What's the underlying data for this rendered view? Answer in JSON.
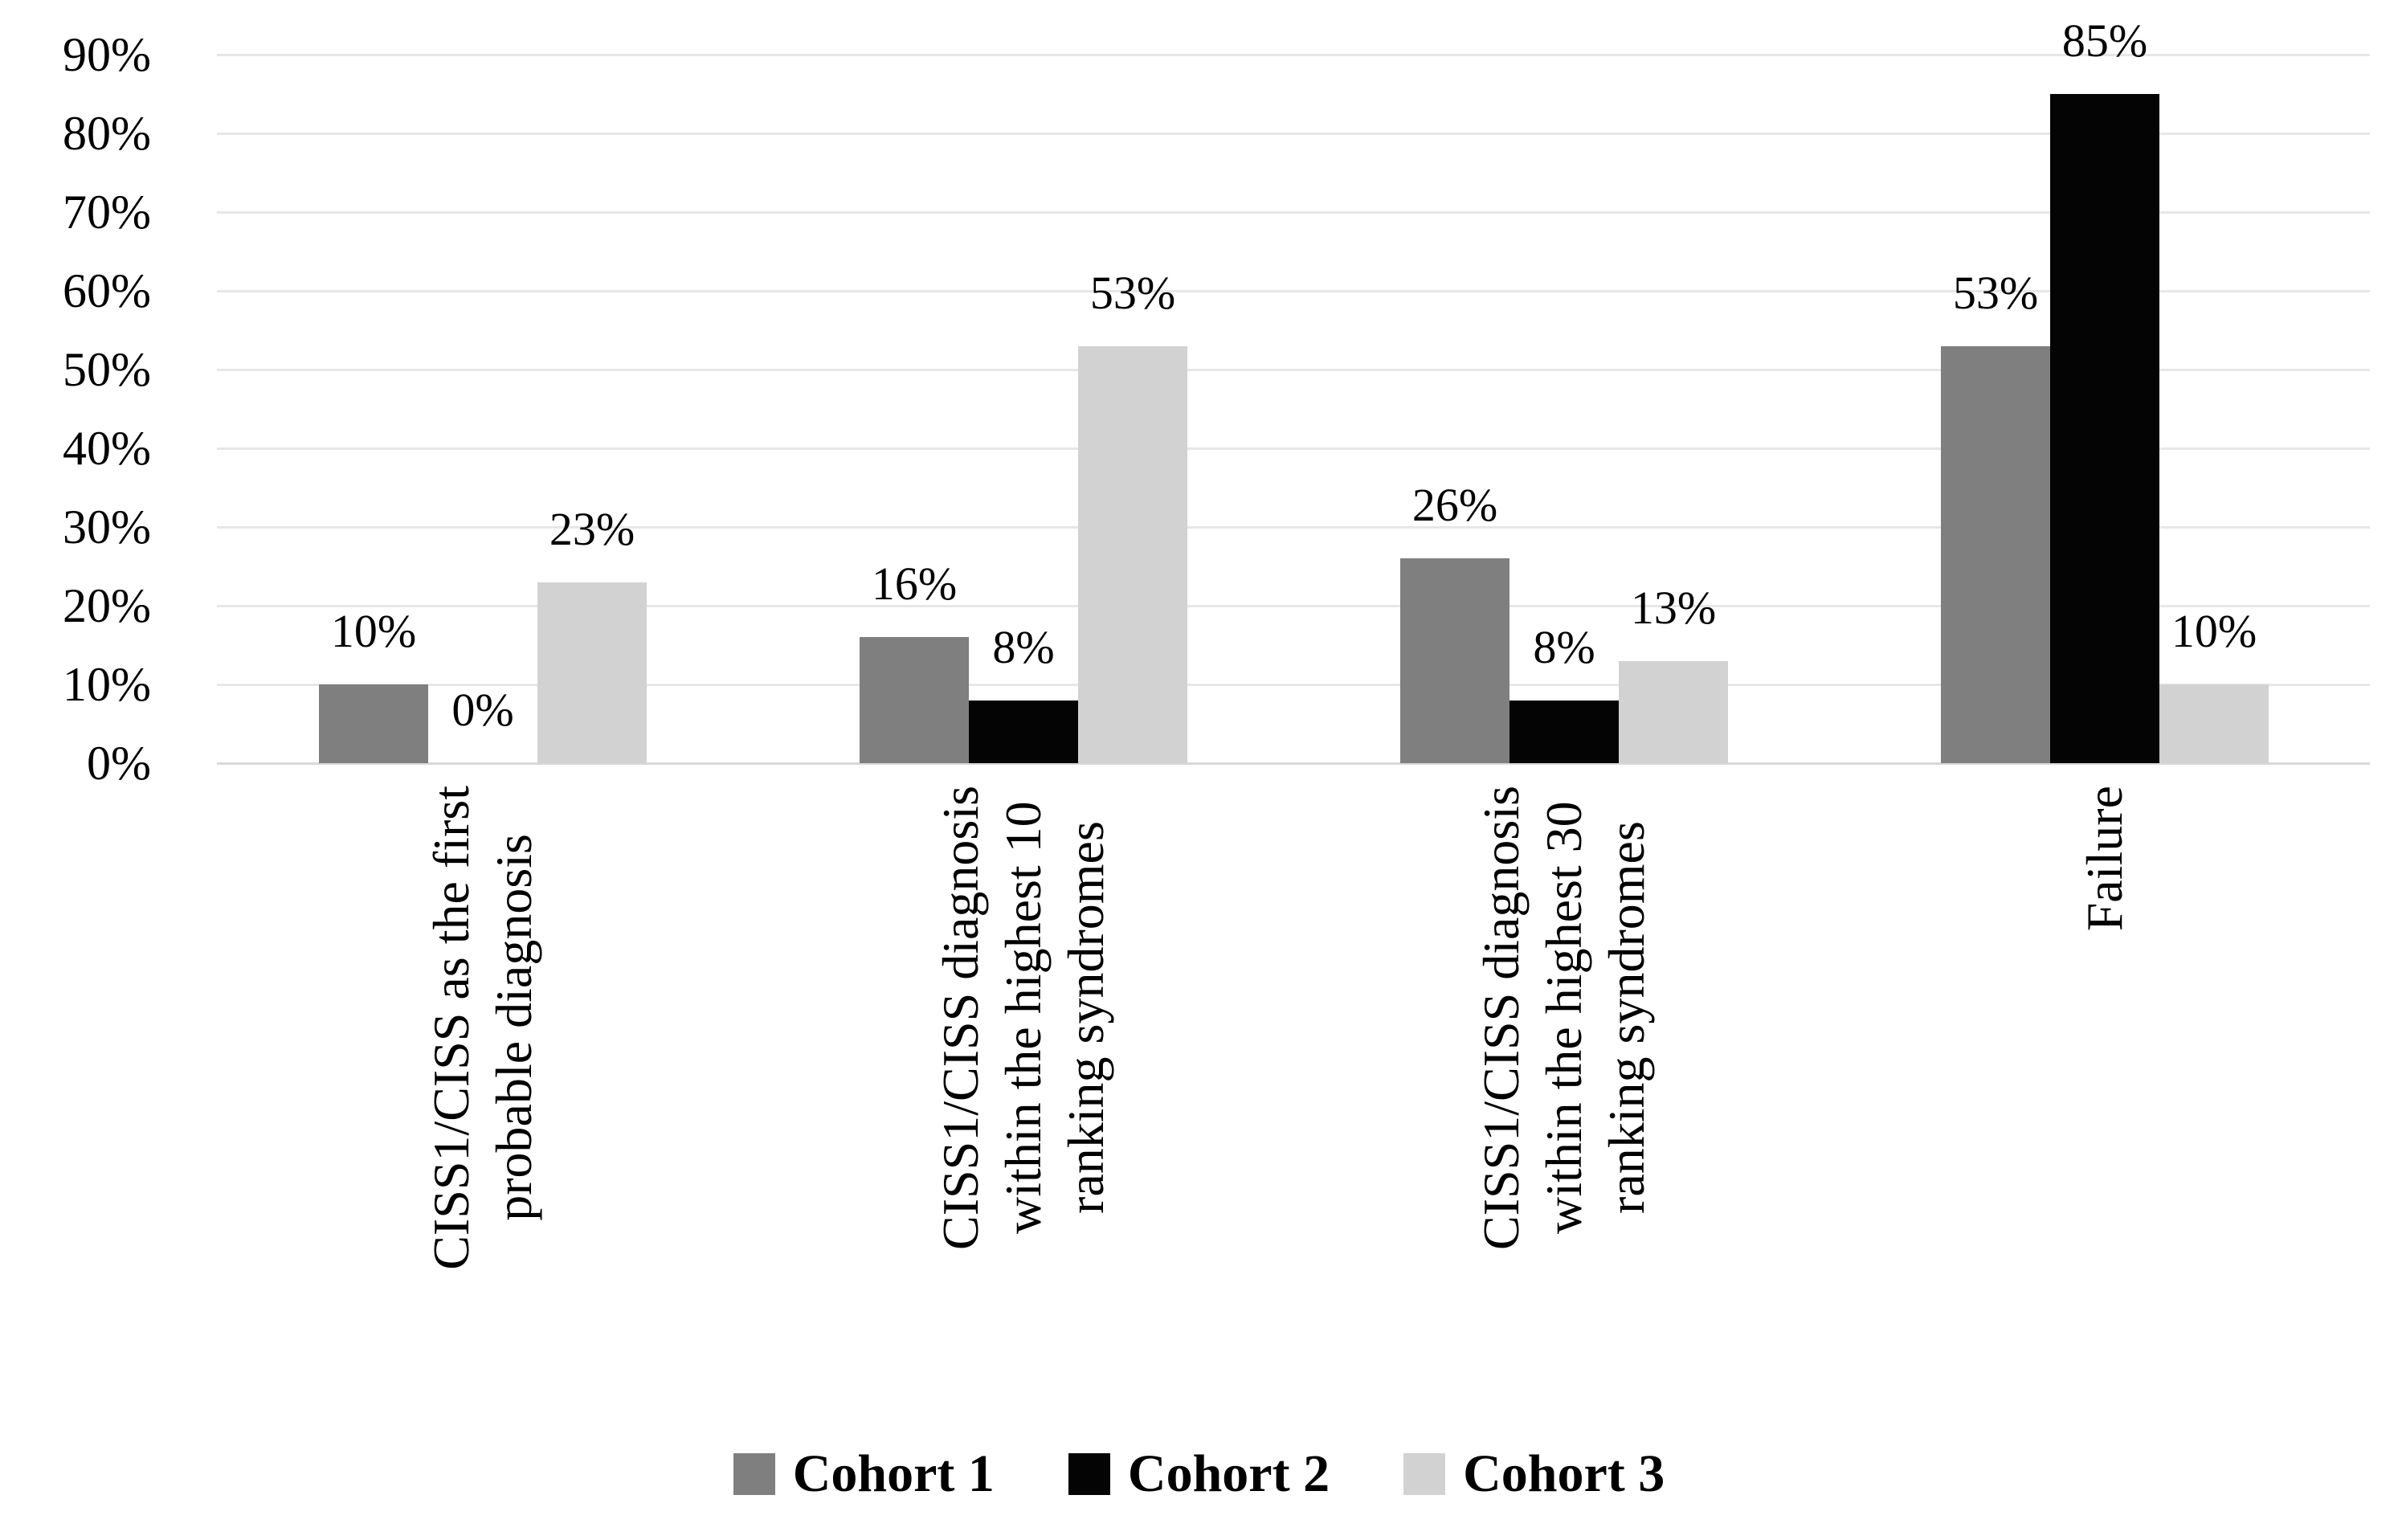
{
  "chart_data": {
    "type": "bar",
    "title": "",
    "xlabel": "",
    "ylabel": "",
    "ylim": [
      0,
      90
    ],
    "grid": true,
    "legend_position": "bottom",
    "y_ticks": [
      "0%",
      "10%",
      "20%",
      "30%",
      "40%",
      "50%",
      "60%",
      "70%",
      "80%",
      "90%"
    ],
    "categories": [
      "CISS1/CISS as the first\nprobable diagnosis",
      "CISS1/CISS diagnosis\nwithin the highest 10\nranking syndromes",
      "CISS1/CISS diagnosis\nwithin the highest 30\nranking syndromes",
      "Failure"
    ],
    "series": [
      {
        "name": "Cohort 1",
        "color": "#7f7f7f",
        "values": [
          10,
          16,
          26,
          53
        ],
        "labels": [
          "10%",
          "16%",
          "26%",
          "53%"
        ]
      },
      {
        "name": "Cohort 2",
        "color": "#040404",
        "values": [
          0,
          8,
          8,
          85
        ],
        "labels": [
          "0%",
          "8%",
          "8%",
          "85%"
        ]
      },
      {
        "name": "Cohort 3",
        "color": "#d2d2d2",
        "values": [
          23,
          53,
          13,
          10
        ],
        "labels": [
          "23%",
          "53%",
          "13%",
          "10%"
        ]
      }
    ]
  },
  "colors": {
    "gridline": "#e7e7e7",
    "axis_line": "#d8d8d8",
    "text": "#000000"
  }
}
